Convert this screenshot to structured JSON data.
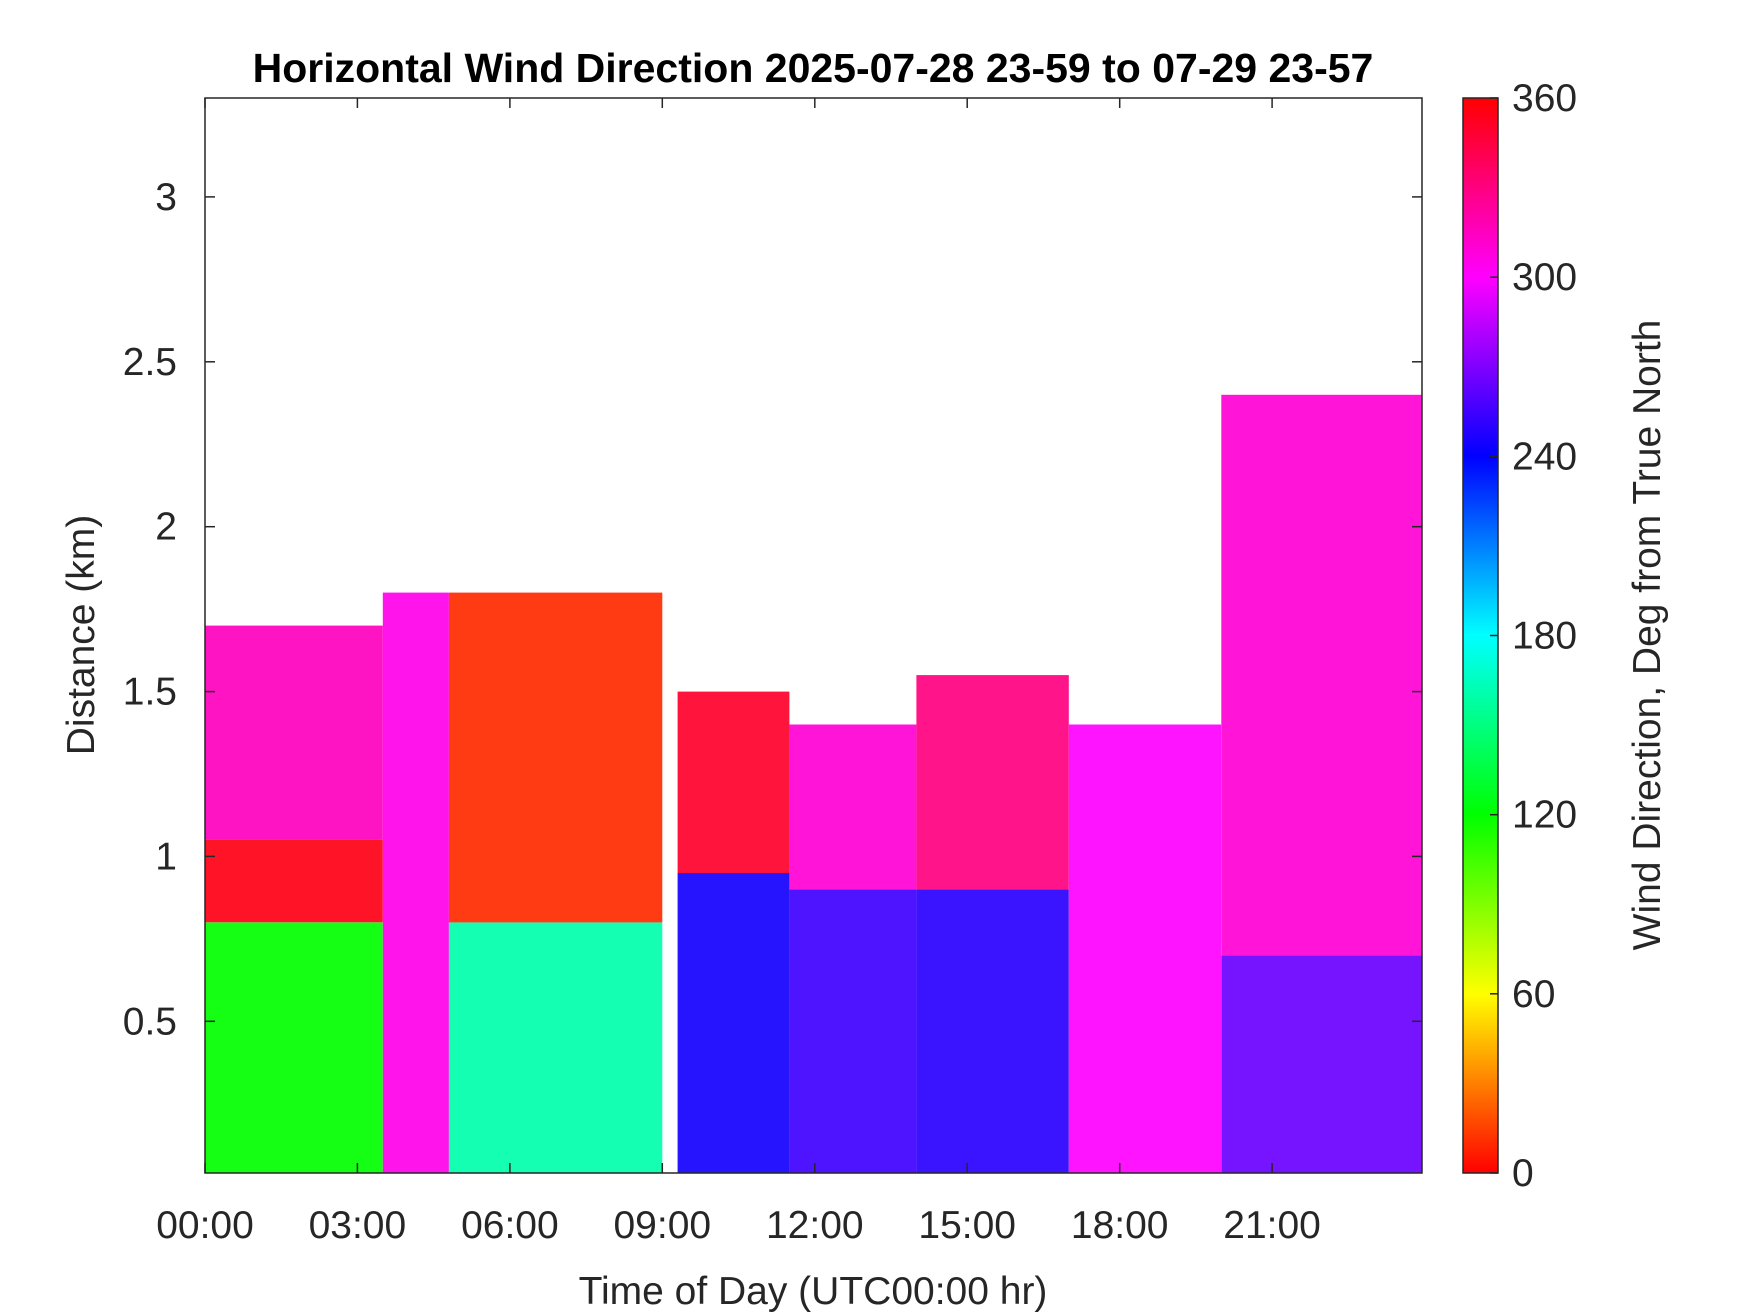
{
  "chart_data": {
    "type": "heatmap",
    "title": "Horizontal Wind Direction 2025-07-28 23-59 to 07-29 23-57",
    "xlabel": "Time of Day (UTC00:00 hr)",
    "ylabel": "Distance (km)",
    "colorbar_label": "Wind Direction, Deg from True North",
    "x_ticks": [
      "00:00",
      "03:00",
      "06:00",
      "09:00",
      "12:00",
      "15:00",
      "18:00",
      "21:00"
    ],
    "x_tick_hours": [
      0,
      3,
      6,
      9,
      12,
      15,
      18,
      21
    ],
    "xlim_hours": [
      0,
      23.95
    ],
    "y_ticks": [
      "0.5",
      "1",
      "1.5",
      "2",
      "2.5",
      "3"
    ],
    "y_tick_values": [
      0.5,
      1,
      1.5,
      2,
      2.5,
      3
    ],
    "ylim": [
      0.04,
      3.3
    ],
    "colorbar_ticks": [
      "0",
      "60",
      "120",
      "180",
      "240",
      "300",
      "360"
    ],
    "colorbar_values": [
      0,
      60,
      120,
      180,
      240,
      300,
      360
    ],
    "clim": [
      0,
      360
    ],
    "colormap": "hsv",
    "colormap_stops": [
      "#ff0000",
      "#ffff00",
      "#00ff00",
      "#00ffff",
      "#0000ff",
      "#ff00ff",
      "#ff0000"
    ],
    "regions": [
      {
        "t": [
          0,
          3.5
        ],
        "z": [
          0.04,
          0.8
        ],
        "dir": 120
      },
      {
        "t": [
          0,
          3.5
        ],
        "z": [
          0.8,
          1.05
        ],
        "dir": 355
      },
      {
        "t": [
          0,
          3.5
        ],
        "z": [
          1.05,
          1.7
        ],
        "dir": 315
      },
      {
        "t": [
          3.5,
          4.8
        ],
        "z": [
          0.04,
          1.8
        ],
        "dir": 305
      },
      {
        "t": [
          4.8,
          9.0
        ],
        "z": [
          0.04,
          0.8
        ],
        "dir": 160
      },
      {
        "t": [
          4.8,
          9.0
        ],
        "z": [
          0.8,
          1.8
        ],
        "dir": 10
      },
      {
        "t": [
          9.3,
          11.5
        ],
        "z": [
          0.04,
          0.95
        ],
        "dir": 245
      },
      {
        "t": [
          9.3,
          11.5
        ],
        "z": [
          0.95,
          1.5
        ],
        "dir": 350
      },
      {
        "t": [
          11.5,
          14.0
        ],
        "z": [
          0.04,
          0.9
        ],
        "dir": 255
      },
      {
        "t": [
          11.5,
          14.0
        ],
        "z": [
          0.9,
          1.4
        ],
        "dir": 310
      },
      {
        "t": [
          14.0,
          17.0
        ],
        "z": [
          0.04,
          0.9
        ],
        "dir": 250
      },
      {
        "t": [
          14.0,
          17.0
        ],
        "z": [
          0.9,
          1.55
        ],
        "dir": 330
      },
      {
        "t": [
          17.0,
          20.0
        ],
        "z": [
          0.04,
          1.4
        ],
        "dir": 300
      },
      {
        "t": [
          20.0,
          23.95
        ],
        "z": [
          0.04,
          0.7
        ],
        "dir": 265
      },
      {
        "t": [
          20.0,
          23.95
        ],
        "z": [
          0.7,
          2.4
        ],
        "dir": 310
      }
    ]
  },
  "colors": {
    "axis": "#262626",
    "background": "#ffffff"
  }
}
